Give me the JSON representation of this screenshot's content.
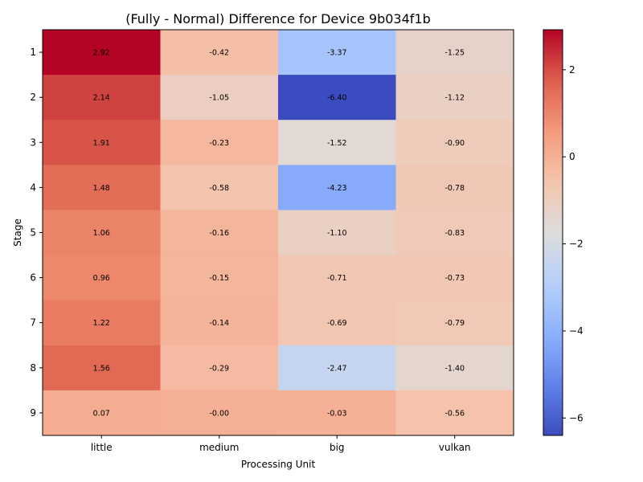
{
  "chart_data": {
    "type": "heatmap",
    "title": "(Fully - Normal) Difference for Device 9b034f1b",
    "xlabel": "Processing Unit",
    "ylabel": "Stage",
    "x_categories": [
      "little",
      "medium",
      "big",
      "vulkan"
    ],
    "y_categories": [
      "1",
      "2",
      "3",
      "4",
      "5",
      "6",
      "7",
      "8",
      "9"
    ],
    "values": [
      [
        2.92,
        -0.42,
        -3.37,
        -1.25
      ],
      [
        2.14,
        -1.05,
        -6.4,
        -1.12
      ],
      [
        1.91,
        -0.23,
        -1.52,
        -0.9
      ],
      [
        1.48,
        -0.58,
        -4.23,
        -0.78
      ],
      [
        1.06,
        -0.16,
        -1.1,
        -0.83
      ],
      [
        0.96,
        -0.15,
        -0.71,
        -0.73
      ],
      [
        1.22,
        -0.14,
        -0.69,
        -0.79
      ],
      [
        1.56,
        -0.29,
        -2.47,
        -1.4
      ],
      [
        0.07,
        -0.0,
        -0.03,
        -0.56
      ]
    ],
    "cell_labels": [
      [
        "2.92",
        "-0.42",
        "-3.37",
        "-1.25"
      ],
      [
        "2.14",
        "-1.05",
        "-6.40",
        "-1.12"
      ],
      [
        "1.91",
        "-0.23",
        "-1.52",
        "-0.90"
      ],
      [
        "1.48",
        "-0.58",
        "-4.23",
        "-0.78"
      ],
      [
        "1.06",
        "-0.16",
        "-1.10",
        "-0.83"
      ],
      [
        "0.96",
        "-0.15",
        "-0.71",
        "-0.73"
      ],
      [
        "1.22",
        "-0.14",
        "-0.69",
        "-0.79"
      ],
      [
        "1.56",
        "-0.29",
        "-2.47",
        "-1.40"
      ],
      [
        "0.07",
        "-0.00",
        "-0.03",
        "-0.56"
      ]
    ],
    "colormap": "coolwarm",
    "color_range": [
      -6.4,
      2.92
    ],
    "colorbar": {
      "ticks": [
        2,
        0,
        -2,
        -4,
        -6
      ],
      "tick_labels": [
        "2",
        "0",
        "−2",
        "−4",
        "−6"
      ],
      "placement": "right"
    },
    "grid": false
  }
}
